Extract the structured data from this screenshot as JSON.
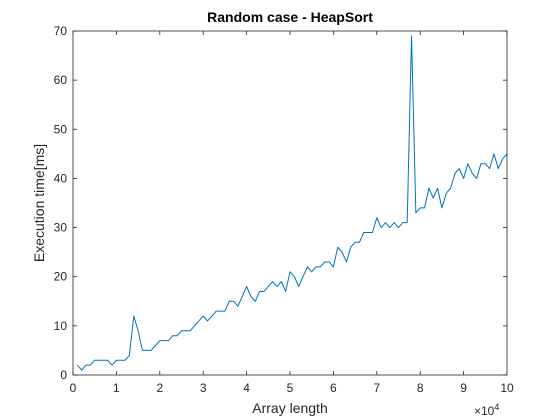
{
  "chart_data": {
    "type": "line",
    "title": "Random case - HeapSort",
    "xlabel": "Array length",
    "ylabel": "Execution time[ms]",
    "xlim": [
      0,
      100000
    ],
    "ylim": [
      0,
      70
    ],
    "grid": false,
    "x_tick_values": [
      0,
      10000,
      20000,
      30000,
      40000,
      50000,
      60000,
      70000,
      80000,
      90000,
      100000
    ],
    "x_tick_labels": [
      "0",
      "1",
      "2",
      "3",
      "4",
      "5",
      "6",
      "7",
      "8",
      "9",
      "10"
    ],
    "x_exponent_base": "×10",
    "x_exponent_power": "4",
    "y_tick_values": [
      0,
      10,
      20,
      30,
      40,
      50,
      60,
      70
    ],
    "y_tick_labels": [
      "0",
      "10",
      "20",
      "30",
      "40",
      "50",
      "60",
      "70"
    ],
    "line_color": "#0072BD",
    "series": [
      {
        "x": [
          1000,
          2000,
          3000,
          4000,
          5000,
          6000,
          7000,
          8000,
          9000,
          10000,
          11000,
          12000,
          13000,
          14000,
          15000,
          16000,
          17000,
          18000,
          19000,
          20000,
          21000,
          22000,
          23000,
          24000,
          25000,
          26000,
          27000,
          28000,
          29000,
          30000,
          31000,
          32000,
          33000,
          34000,
          35000,
          36000,
          37000,
          38000,
          39000,
          40000,
          41000,
          42000,
          43000,
          44000,
          45000,
          46000,
          47000,
          48000,
          49000,
          50000,
          51000,
          52000,
          53000,
          54000,
          55000,
          56000,
          57000,
          58000,
          59000,
          60000,
          61000,
          62000,
          63000,
          64000,
          65000,
          66000,
          67000,
          68000,
          69000,
          70000,
          71000,
          72000,
          73000,
          74000,
          75000,
          76000,
          77000,
          78000,
          79000,
          80000,
          81000,
          82000,
          83000,
          84000,
          85000,
          86000,
          87000,
          88000,
          89000,
          90000,
          91000,
          92000,
          93000,
          94000,
          95000,
          96000,
          97000,
          98000,
          99000,
          100000
        ],
        "values": [
          2,
          1,
          2,
          2,
          3,
          3,
          3,
          3,
          2,
          3,
          3,
          3,
          4,
          12,
          9,
          5,
          5,
          5,
          6,
          7,
          7,
          7,
          8,
          8,
          9,
          9,
          9,
          10,
          11,
          12,
          11,
          12,
          13,
          13,
          13,
          15,
          15,
          14,
          16,
          18,
          16,
          15,
          17,
          17,
          18,
          19,
          18,
          19,
          17,
          21,
          20,
          18,
          20,
          22,
          21,
          22,
          22,
          23,
          23,
          22,
          26,
          25,
          23,
          26,
          27,
          27,
          29,
          29,
          29,
          32,
          30,
          31,
          30,
          31,
          30,
          31,
          31,
          69,
          33,
          34,
          34,
          38,
          36,
          38,
          34,
          37,
          38,
          41,
          42,
          40,
          43,
          41,
          40,
          43,
          43,
          42,
          45,
          42,
          44,
          45
        ]
      }
    ]
  }
}
